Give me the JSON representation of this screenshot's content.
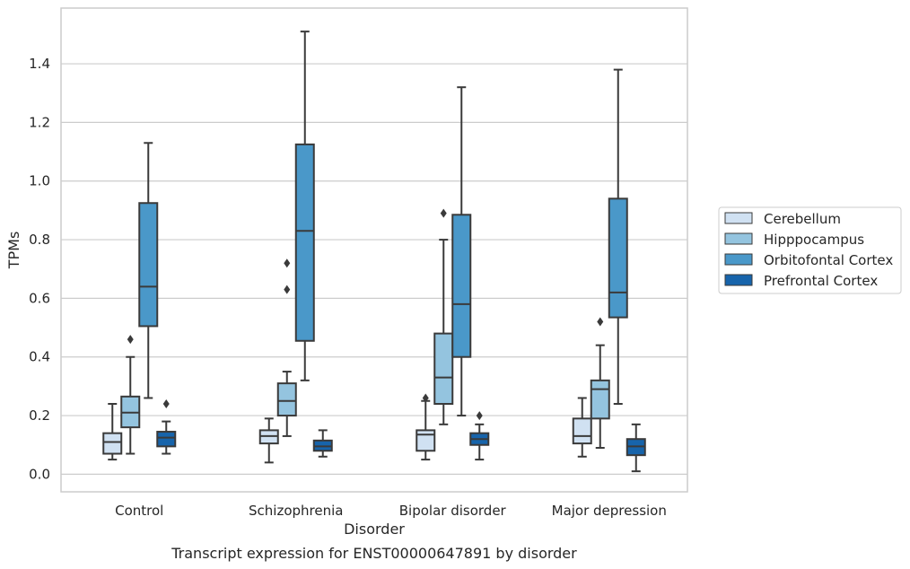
{
  "chart_data": {
    "type": "box",
    "caption": "Transcript expression for ENST00000647891 by disorder",
    "xlabel": "Disorder",
    "ylabel": "TPMs",
    "ylim": [
      -0.06,
      1.59
    ],
    "yticks": [
      "0.0",
      "0.2",
      "0.4",
      "0.6",
      "0.8",
      "1.0",
      "1.2",
      "1.4"
    ],
    "ytick_values": [
      0.0,
      0.2,
      0.4,
      0.6,
      0.8,
      1.0,
      1.2,
      1.4
    ],
    "grid": "horizontal",
    "legend_position": "right",
    "categories": [
      "Control",
      "Schizophrenia",
      "Bipolar disorder",
      "Major depression"
    ],
    "series": [
      {
        "name": "Cerebellum",
        "color": "#d0e1f2",
        "boxes": [
          {
            "whisker_low": 0.05,
            "q1": 0.07,
            "median": 0.11,
            "q3": 0.14,
            "whisker_high": 0.24,
            "outliers": []
          },
          {
            "whisker_low": 0.04,
            "q1": 0.105,
            "median": 0.13,
            "q3": 0.15,
            "whisker_high": 0.19,
            "outliers": []
          },
          {
            "whisker_low": 0.05,
            "q1": 0.08,
            "median": 0.135,
            "q3": 0.15,
            "whisker_high": 0.25,
            "outliers": [
              0.26
            ]
          },
          {
            "whisker_low": 0.06,
            "q1": 0.105,
            "median": 0.13,
            "q3": 0.19,
            "whisker_high": 0.26,
            "outliers": []
          }
        ]
      },
      {
        "name": "Hipppocampus",
        "color": "#94c4df",
        "boxes": [
          {
            "whisker_low": 0.07,
            "q1": 0.16,
            "median": 0.21,
            "q3": 0.265,
            "whisker_high": 0.4,
            "outliers": [
              0.46
            ]
          },
          {
            "whisker_low": 0.13,
            "q1": 0.2,
            "median": 0.25,
            "q3": 0.31,
            "whisker_high": 0.35,
            "outliers": [
              0.63,
              0.72
            ]
          },
          {
            "whisker_low": 0.17,
            "q1": 0.24,
            "median": 0.33,
            "q3": 0.48,
            "whisker_high": 0.8,
            "outliers": [
              0.89
            ]
          },
          {
            "whisker_low": 0.09,
            "q1": 0.19,
            "median": 0.29,
            "q3": 0.32,
            "whisker_high": 0.44,
            "outliers": [
              0.52
            ]
          }
        ]
      },
      {
        "name": "Orbitofontal Cortex",
        "color": "#4a98c9",
        "boxes": [
          {
            "whisker_low": 0.26,
            "q1": 0.505,
            "median": 0.64,
            "q3": 0.925,
            "whisker_high": 1.13,
            "outliers": []
          },
          {
            "whisker_low": 0.32,
            "q1": 0.455,
            "median": 0.83,
            "q3": 1.125,
            "whisker_high": 1.51,
            "outliers": []
          },
          {
            "whisker_low": 0.2,
            "q1": 0.4,
            "median": 0.58,
            "q3": 0.885,
            "whisker_high": 1.32,
            "outliers": []
          },
          {
            "whisker_low": 0.24,
            "q1": 0.535,
            "median": 0.62,
            "q3": 0.94,
            "whisker_high": 1.38,
            "outliers": []
          }
        ]
      },
      {
        "name": "Prefrontal Cortex",
        "color": "#1764ab",
        "boxes": [
          {
            "whisker_low": 0.07,
            "q1": 0.095,
            "median": 0.125,
            "q3": 0.145,
            "whisker_high": 0.18,
            "outliers": [
              0.24
            ]
          },
          {
            "whisker_low": 0.06,
            "q1": 0.08,
            "median": 0.095,
            "q3": 0.115,
            "whisker_high": 0.15,
            "outliers": []
          },
          {
            "whisker_low": 0.05,
            "q1": 0.1,
            "median": 0.12,
            "q3": 0.14,
            "whisker_high": 0.17,
            "outliers": [
              0.2
            ]
          },
          {
            "whisker_low": 0.01,
            "q1": 0.065,
            "median": 0.095,
            "q3": 0.12,
            "whisker_high": 0.17,
            "outliers": []
          }
        ]
      }
    ]
  }
}
